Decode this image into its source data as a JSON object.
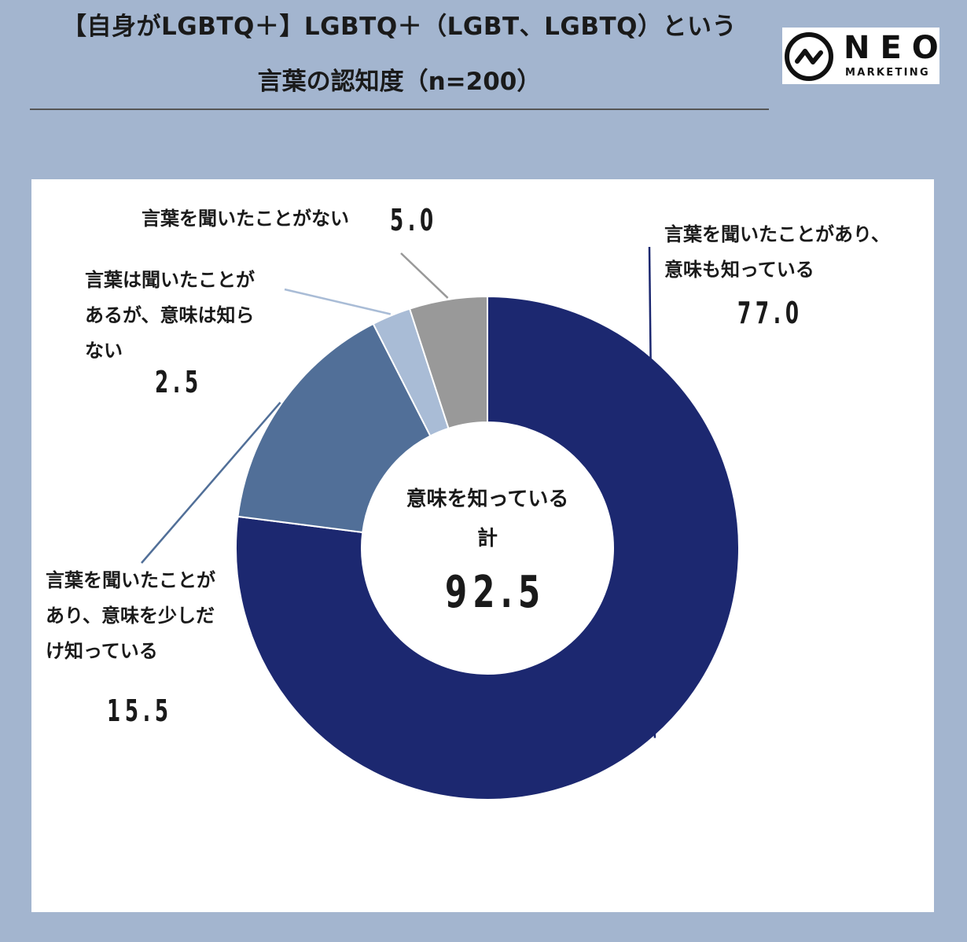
{
  "header": {
    "title_line1": "【自身がLGBTQ＋】LGBTQ＋（LGBT、LGBTQ）という",
    "title_line2": "言葉の認知度（n=200）"
  },
  "logo": {
    "name": "NEO",
    "subtitle": "MARKETING"
  },
  "chart_data": {
    "type": "pie",
    "variant": "donut",
    "sample_size": "n=200",
    "slices": [
      {
        "label_lines": [
          "言葉を聞いたことがあり、",
          "意味も知っている"
        ],
        "value": 77.0,
        "value_text": "77.0",
        "color": "#1c2870"
      },
      {
        "label_lines": [
          "言葉を聞いたことが",
          "あり、意味を少しだ",
          "け知っている"
        ],
        "value": 15.5,
        "value_text": "15.5",
        "color": "#516f98"
      },
      {
        "label_lines": [
          "言葉は聞いたことが",
          "あるが、意味は知ら",
          "ない"
        ],
        "value": 2.5,
        "value_text": "2.5",
        "color": "#a9bcd6"
      },
      {
        "label_lines": [
          "言葉を聞いたことがない"
        ],
        "value": 5.0,
        "value_text": "5.0",
        "color": "#999999"
      }
    ],
    "center": {
      "label_line1": "意味を知っている",
      "label_line2": "計",
      "value": 92.5,
      "value_text": "92.5"
    },
    "legend": "none"
  }
}
